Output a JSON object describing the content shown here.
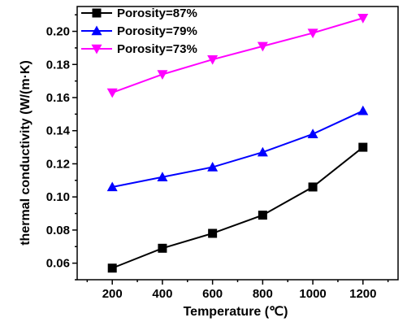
{
  "chart_data": {
    "type": "line",
    "title": "",
    "xlabel": "Temperature (℃)",
    "ylabel": "thermal conductivity (W/(m·K)",
    "x": [
      200,
      400,
      600,
      800,
      1000,
      1200
    ],
    "xlim": [
      60,
      1340
    ],
    "ylim": [
      0.05,
      0.215
    ],
    "xticks": [
      "200",
      "400",
      "600",
      "800",
      "1000",
      "1200"
    ],
    "yticks": [
      "0.06",
      "0.08",
      "0.10",
      "0.12",
      "0.14",
      "0.16",
      "0.18",
      "0.20"
    ],
    "grid": false,
    "legend_position": "top-left",
    "series": [
      {
        "name": "Porosity=87%",
        "color": "#000000",
        "marker": "square",
        "values": [
          0.057,
          0.069,
          0.078,
          0.089,
          0.106,
          0.13
        ]
      },
      {
        "name": "Porosity=79%",
        "color": "#0000ff",
        "marker": "triangle-up",
        "values": [
          0.106,
          0.112,
          0.118,
          0.127,
          0.138,
          0.152
        ]
      },
      {
        "name": "Porosity=73%",
        "color": "#ff00ff",
        "marker": "triangle-down",
        "values": [
          0.163,
          0.174,
          0.183,
          0.191,
          0.199,
          0.208
        ]
      }
    ]
  }
}
